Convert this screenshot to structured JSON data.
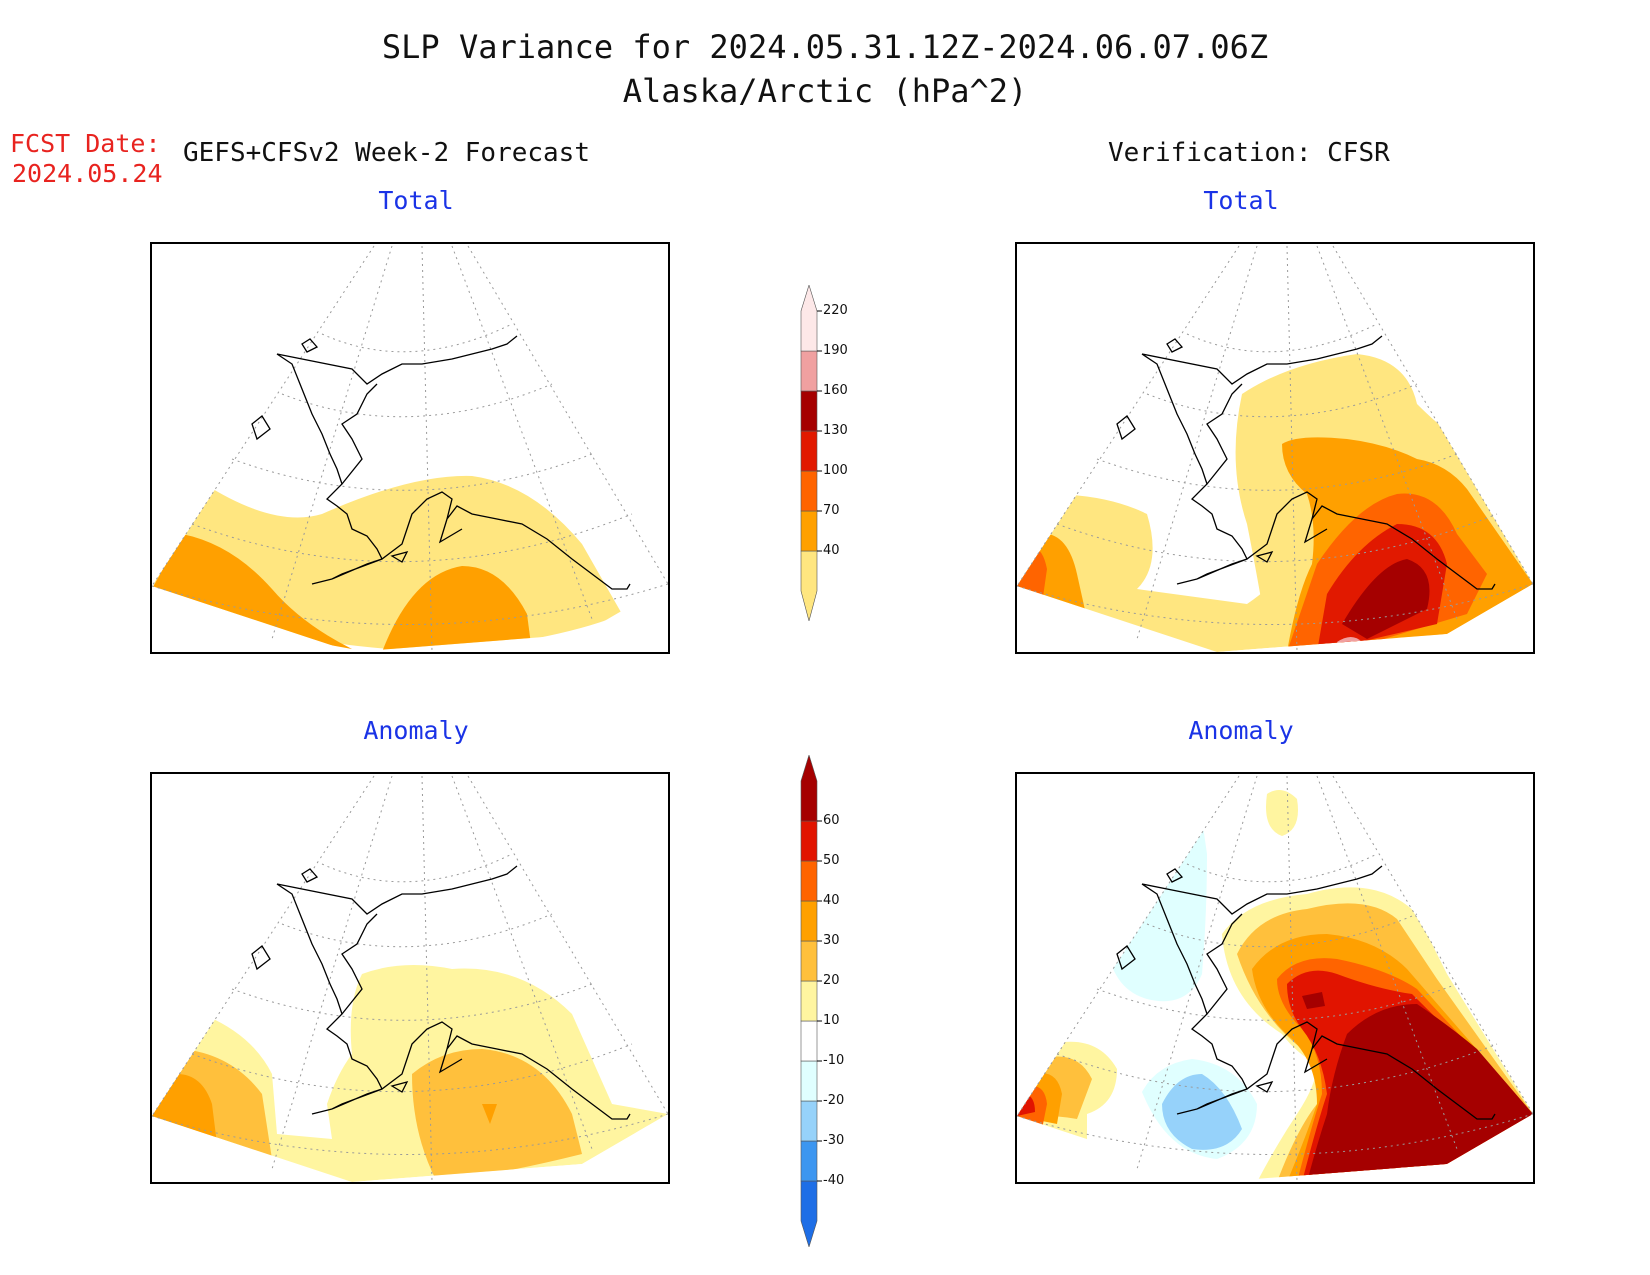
{
  "header": {
    "title_line1": "SLP Variance for 2024.05.31.12Z-2024.06.07.06Z",
    "title_line2": "Alaska/Arctic (hPa^2)",
    "fcst_label": "FCST Date:",
    "fcst_date": "2024.05.24",
    "left_heading": "GEFS+CFSv2 Week-2 Forecast",
    "right_heading": "Verification: CFSR"
  },
  "panels": {
    "forecast_total": {
      "title": "Total"
    },
    "verification_total": {
      "title": "Total"
    },
    "forecast_anomaly": {
      "title": "Anomaly"
    },
    "verification_anomaly": {
      "title": "Anomaly"
    }
  },
  "colorbar_total": {
    "levels": [
      "40",
      "70",
      "100",
      "130",
      "160",
      "190",
      "220"
    ],
    "colors": [
      "#ffe680",
      "#ffa000",
      "#ff6400",
      "#e11900",
      "#a50000",
      "#f0a0a0",
      "#fde8e8"
    ]
  },
  "colorbar_anomaly": {
    "levels": [
      "-40",
      "-30",
      "-20",
      "-10",
      "10",
      "20",
      "30",
      "40",
      "50",
      "60"
    ],
    "colors": [
      "#1e6ee6",
      "#3c96f0",
      "#96d2fa",
      "#e0ffff",
      "#ffffff",
      "#fff5a0",
      "#ffc03c",
      "#ffa000",
      "#ff6400",
      "#e11400",
      "#a50000"
    ]
  },
  "legend_colors": {
    "title_blue": "#1a33e6",
    "fcst_red": "#e8231f"
  }
}
